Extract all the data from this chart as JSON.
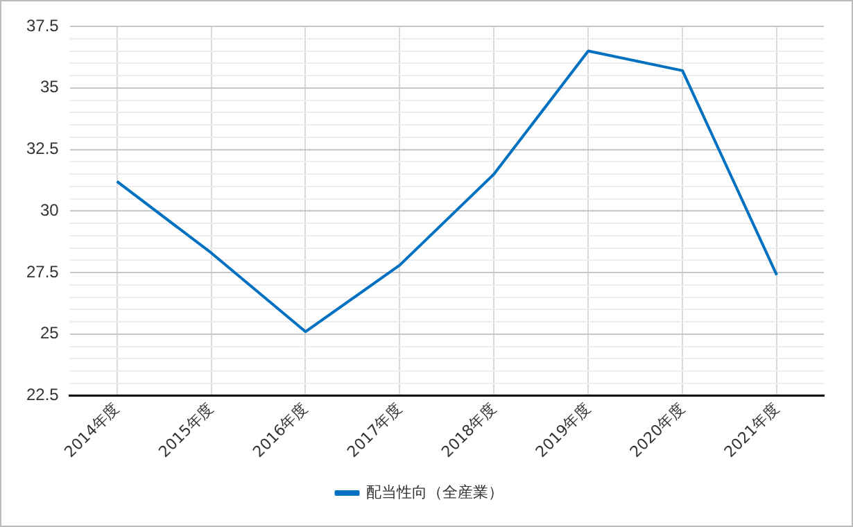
{
  "chart_data": {
    "type": "line",
    "categories": [
      "2014年度",
      "2015年度",
      "2016年度",
      "2017年度",
      "2018年度",
      "2019年度",
      "2020年度",
      "2021年度"
    ],
    "series": [
      {
        "name": "配当性向（全産業）",
        "color": "#0070c0",
        "values": [
          31.2,
          28.3,
          25.1,
          27.8,
          31.5,
          36.5,
          35.7,
          27.4
        ]
      }
    ],
    "ylim": [
      22.5,
      37.5
    ],
    "yticks": [
      22.5,
      {
        "value": 23,
        "label": null
      },
      {
        "value": 23.5,
        "label": null
      },
      {
        "value": 24,
        "label": null
      },
      {
        "value": 24.5,
        "label": null
      },
      25,
      {
        "value": 25.5,
        "label": null
      },
      {
        "value": 26,
        "label": null
      },
      {
        "value": 26.5,
        "label": null
      },
      {
        "value": 27,
        "label": null
      },
      27.5,
      {
        "value": 28,
        "label": null
      },
      {
        "value": 28.5,
        "label": null
      },
      {
        "value": 29,
        "label": null
      },
      {
        "value": 29.5,
        "label": null
      },
      30,
      {
        "value": 30.5,
        "label": null
      },
      {
        "value": 31,
        "label": null
      },
      {
        "value": 31.5,
        "label": null
      },
      {
        "value": 32,
        "label": null
      },
      32.5,
      {
        "value": 33,
        "label": null
      },
      {
        "value": 33.5,
        "label": null
      },
      {
        "value": 34,
        "label": null
      },
      {
        "value": 34.5,
        "label": null
      },
      35,
      {
        "value": 35.5,
        "label": null
      },
      {
        "value": 36,
        "label": null
      },
      {
        "value": 36.5,
        "label": null
      },
      {
        "value": 37,
        "label": null
      },
      37.5
    ],
    "grid": true,
    "legend": "bottom",
    "marker": "none",
    "line_style": "solid"
  }
}
